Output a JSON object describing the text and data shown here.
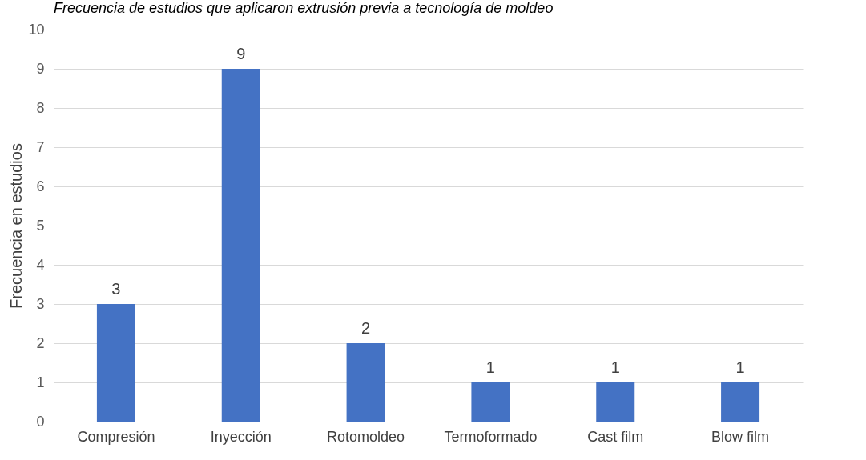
{
  "chart_data": {
    "type": "bar",
    "title": "Frecuencia de estudios que aplicaron extrusión previa a tecnología de moldeo",
    "ylabel": "Frecuencia en estudios",
    "categories": [
      "Compresión",
      "Inyección",
      "Rotomoldeo",
      "Termoformado",
      "Cast film",
      "Blow film"
    ],
    "values": [
      3,
      9,
      2,
      1,
      1,
      1
    ],
    "color": "#4472c4",
    "ylim": [
      0,
      10
    ],
    "yticks": [
      0,
      1,
      2,
      3,
      4,
      5,
      6,
      7,
      8,
      9,
      10
    ],
    "grid": "y",
    "data_labels": true
  }
}
